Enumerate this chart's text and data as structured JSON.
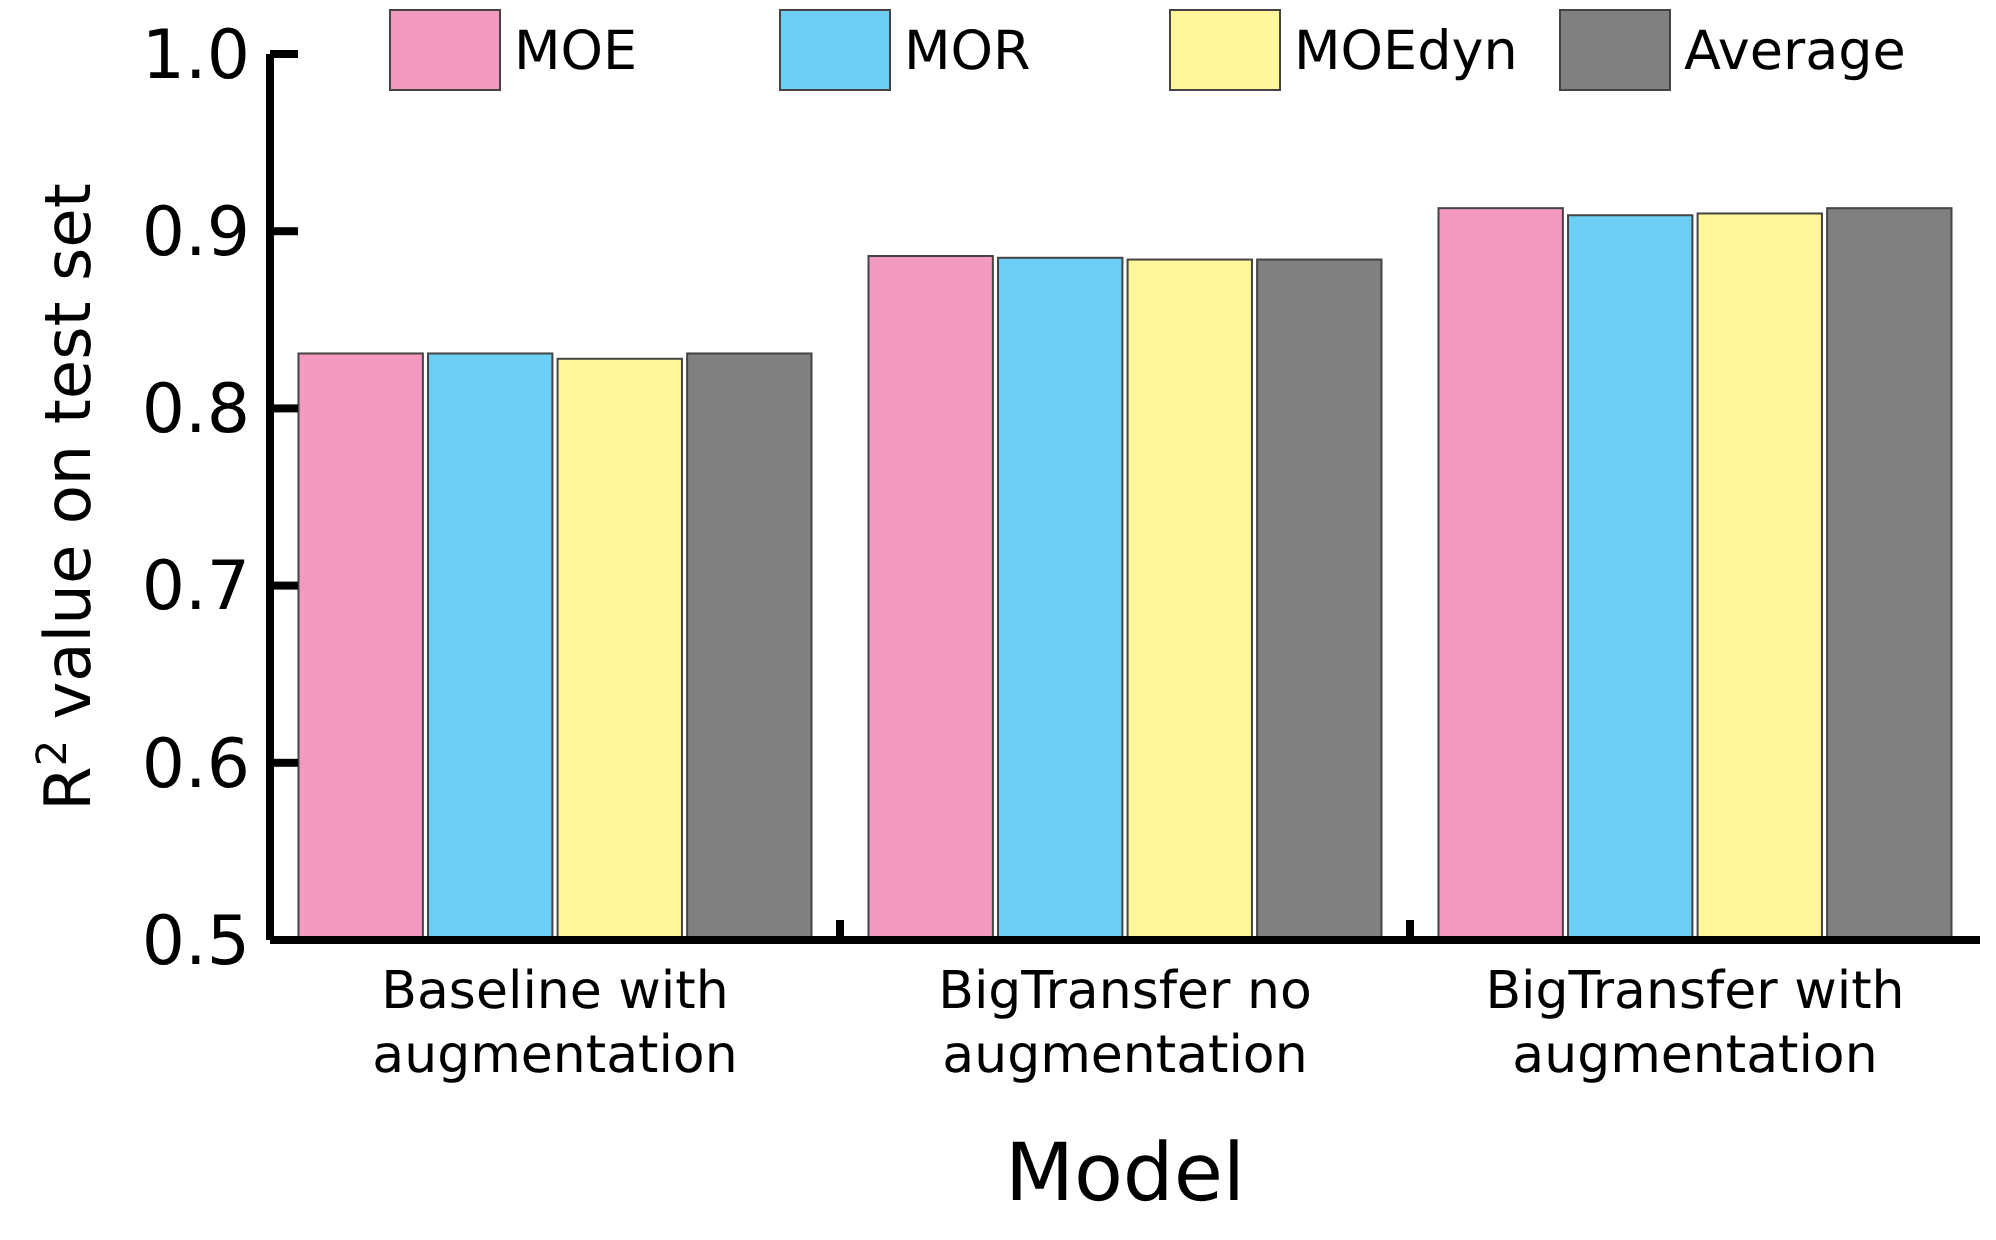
{
  "chart_data": {
    "type": "bar",
    "xlabel": "Model",
    "ylabel": "R$^{2}$ value on test set",
    "categories": [
      "Baseline with augmentation",
      "BigTransfer no augmentation",
      "BigTransfer with augmentation"
    ],
    "series": [
      {
        "name": "MOE",
        "color": "#f49ac1",
        "values": [
          0.831,
          0.886,
          0.913
        ]
      },
      {
        "name": "MOR",
        "color": "#6dcff6",
        "values": [
          0.831,
          0.885,
          0.909
        ]
      },
      {
        "name": "MOEdyn",
        "color": "#fff799",
        "values": [
          0.828,
          0.884,
          0.91
        ]
      },
      {
        "name": "Average",
        "color": "#808080",
        "values": [
          0.831,
          0.884,
          0.913
        ]
      }
    ],
    "ylim": [
      0.5,
      1.0
    ],
    "yticks": [
      {
        "value": 0.5,
        "label": "0.5"
      },
      {
        "value": 0.6,
        "label": "0.6"
      },
      {
        "value": 0.7,
        "label": "0.7"
      },
      {
        "value": 0.8,
        "label": "0.8"
      },
      {
        "value": 0.9,
        "label": "0.9"
      },
      {
        "value": 1.0,
        "label": "1.0"
      }
    ],
    "grid": false,
    "legend": "top"
  }
}
